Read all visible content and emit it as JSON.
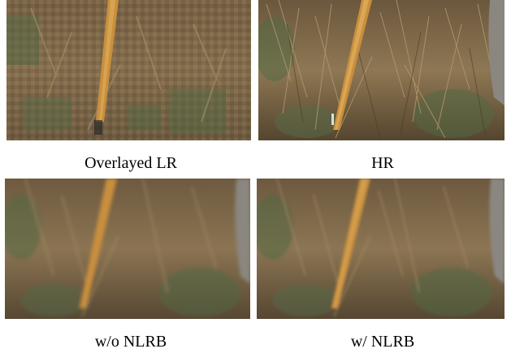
{
  "figure": {
    "panels": [
      {
        "caption": "Overlayed LR",
        "quality": "pixelated"
      },
      {
        "caption": "HR",
        "quality": "sharp"
      },
      {
        "caption": "w/o NLRB",
        "quality": "blurred"
      },
      {
        "caption": "w/ NLRB",
        "quality": "blurred"
      }
    ],
    "scene_colors": {
      "grass_dark": "#5b4a34",
      "grass_mid": "#8a7352",
      "grass_light": "#a78e66",
      "stick": "#c98f3c",
      "stick_highlight": "#e0b060",
      "green_tint": "#4f6a44",
      "cloth_gray": "#8a8680"
    }
  }
}
